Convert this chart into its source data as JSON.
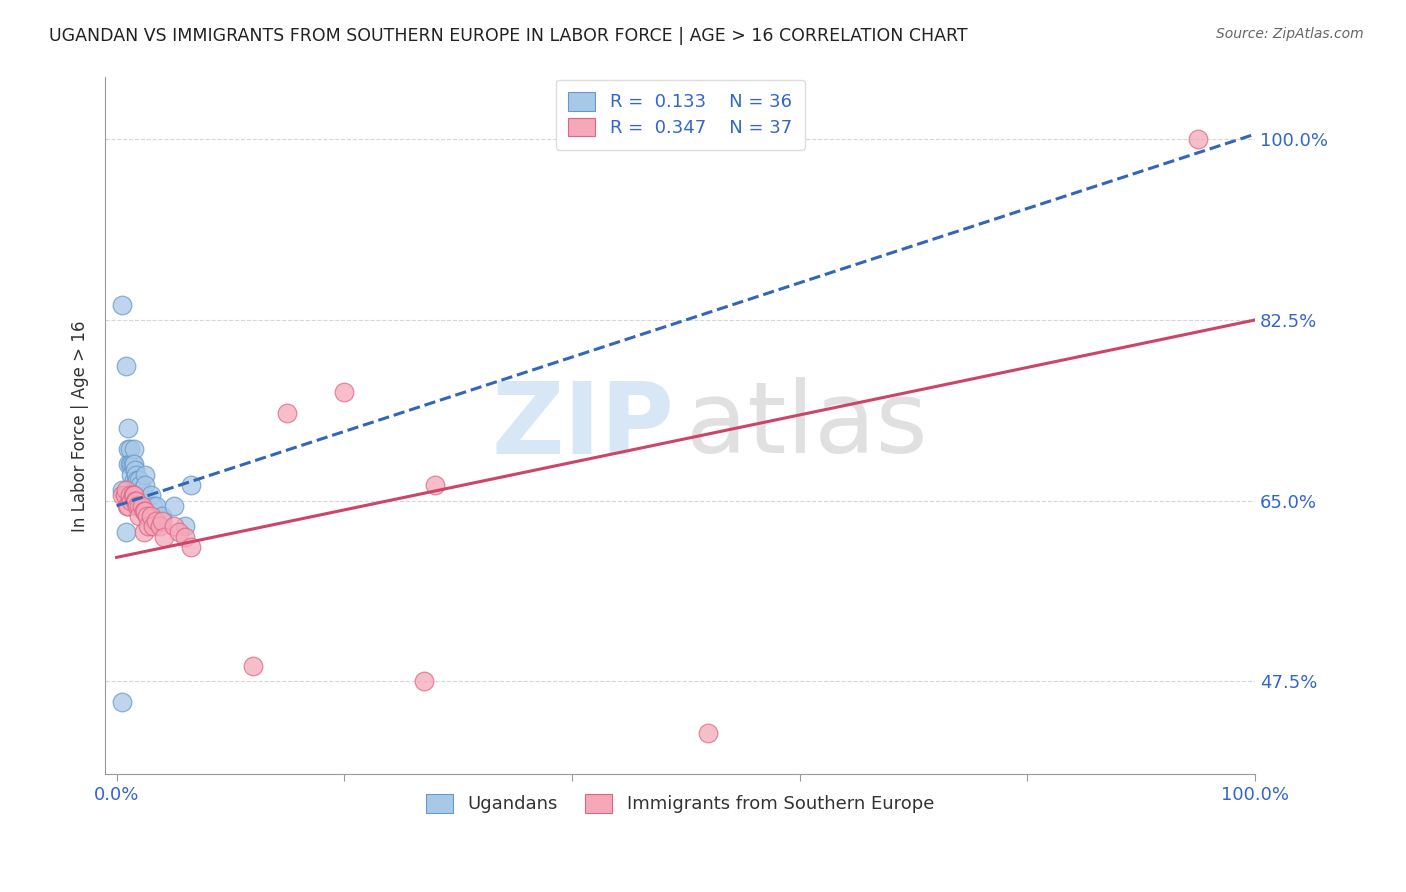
{
  "title": "UGANDAN VS IMMIGRANTS FROM SOUTHERN EUROPE IN LABOR FORCE | AGE > 16 CORRELATION CHART",
  "source": "Source: ZipAtlas.com",
  "ylabel": "In Labor Force | Age > 16",
  "y_tick_labels": [
    "47.5%",
    "65.0%",
    "82.5%",
    "100.0%"
  ],
  "y_tick_values": [
    0.475,
    0.65,
    0.825,
    1.0
  ],
  "x_tick_values": [
    0.0,
    0.2,
    0.4,
    0.6,
    0.8,
    1.0
  ],
  "xlim": [
    -0.01,
    1.0
  ],
  "ylim": [
    0.385,
    1.06
  ],
  "legend_r1": "0.133",
  "legend_n1": "36",
  "legend_r2": "0.347",
  "legend_n2": "37",
  "legend_label1": "Ugandans",
  "legend_label2": "Immigrants from Southern Europe",
  "scatter_color1": "#a8c8e8",
  "scatter_color2": "#f4a8b8",
  "scatter_edge1": "#6699cc",
  "scatter_edge2": "#dd6688",
  "trend_color1": "#3366bb",
  "trend_color2": "#cc4466",
  "watermark_zip_color": "#b8d4ee",
  "watermark_atlas_color": "#c8c8c8",
  "ugandan_x": [
    0.005,
    0.005,
    0.008,
    0.01,
    0.01,
    0.01,
    0.012,
    0.012,
    0.013,
    0.013,
    0.014,
    0.015,
    0.015,
    0.015,
    0.016,
    0.016,
    0.017,
    0.017,
    0.018,
    0.018,
    0.019,
    0.02,
    0.02,
    0.021,
    0.022,
    0.025,
    0.025,
    0.03,
    0.032,
    0.035,
    0.04,
    0.05,
    0.06,
    0.065,
    0.005,
    0.008
  ],
  "ugandan_y": [
    0.455,
    0.84,
    0.78,
    0.72,
    0.7,
    0.685,
    0.7,
    0.685,
    0.685,
    0.675,
    0.685,
    0.7,
    0.685,
    0.67,
    0.68,
    0.665,
    0.675,
    0.66,
    0.67,
    0.655,
    0.66,
    0.67,
    0.655,
    0.665,
    0.66,
    0.675,
    0.665,
    0.655,
    0.645,
    0.645,
    0.635,
    0.645,
    0.625,
    0.665,
    0.66,
    0.62
  ],
  "southern_eu_x": [
    0.005,
    0.007,
    0.008,
    0.009,
    0.01,
    0.012,
    0.013,
    0.014,
    0.015,
    0.016,
    0.017,
    0.018,
    0.02,
    0.02,
    0.022,
    0.024,
    0.024,
    0.025,
    0.027,
    0.028,
    0.03,
    0.032,
    0.035,
    0.038,
    0.04,
    0.042,
    0.05,
    0.055,
    0.06,
    0.065,
    0.12,
    0.15,
    0.2,
    0.27,
    0.28,
    0.52,
    0.95
  ],
  "southern_eu_y": [
    0.655,
    0.655,
    0.66,
    0.645,
    0.645,
    0.655,
    0.65,
    0.655,
    0.655,
    0.65,
    0.65,
    0.645,
    0.645,
    0.635,
    0.645,
    0.64,
    0.62,
    0.64,
    0.635,
    0.625,
    0.635,
    0.625,
    0.63,
    0.625,
    0.63,
    0.615,
    0.625,
    0.62,
    0.615,
    0.605,
    0.49,
    0.735,
    0.755,
    0.475,
    0.665,
    0.425,
    1.0
  ],
  "trend1_x0": 0.0,
  "trend1_x1": 1.0,
  "trend1_y0": 0.645,
  "trend1_y1": 1.005,
  "trend2_x0": 0.0,
  "trend2_x1": 1.0,
  "trend2_y0": 0.595,
  "trend2_y1": 0.825
}
